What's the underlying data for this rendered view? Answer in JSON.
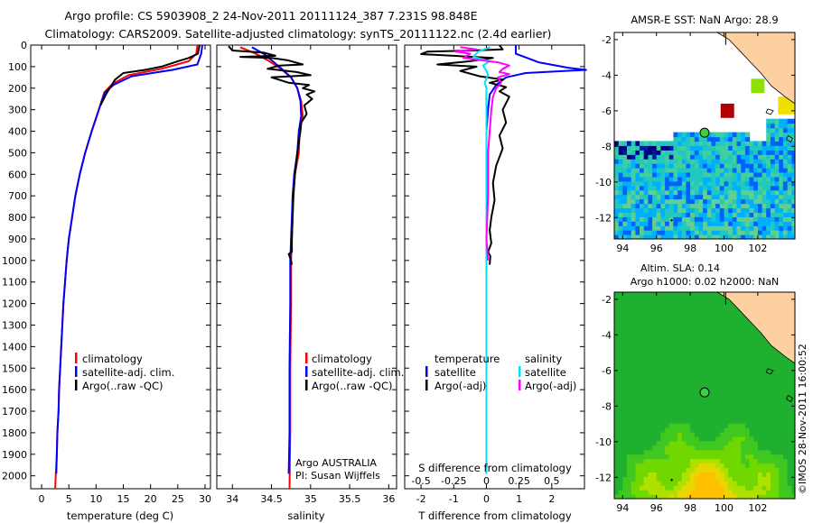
{
  "header": {
    "title_line1": "Argo profile: CS 5903908_2 24-Nov-2011 20111124_387 7.231S 98.848E",
    "title_line2": "Climatology: CARS2009. Satellite-adjusted climatology: synTS_20111122.nc (2.4d earlier)"
  },
  "colors": {
    "climatology": "#ff0000",
    "satellite": "#0000ff",
    "argo": "#000000",
    "sal_satellite": "#00e0ff",
    "sal_argo": "#ff00ff"
  },
  "legend": {
    "climatology": "climatology",
    "satellite_adj": "satellite-adj. clim.",
    "argo_raw": "Argo(..raw -QC)",
    "temperature_head": "temperature",
    "salinity_head": "salinity",
    "satellite": "satellite",
    "argo_adj": "Argo(-adj)"
  },
  "annotations": {
    "argo_country": "Argo AUSTRALIA",
    "pi": "PI: Susan Wijffels"
  },
  "timestamp": "©IMOS 28-Nov-2011 16:00:52",
  "chart_data": [
    {
      "type": "line",
      "name": "temperature-profile",
      "xlabel": "temperature (deg C)",
      "ylabel": "depth",
      "xlim": [
        -2,
        31
      ],
      "ylim": [
        2060,
        0
      ],
      "xticks": [
        0,
        5,
        10,
        15,
        20,
        25,
        30
      ],
      "yticks": [
        0,
        100,
        200,
        300,
        400,
        500,
        600,
        700,
        800,
        900,
        1000,
        1100,
        1200,
        1300,
        1400,
        1500,
        1600,
        1700,
        1800,
        1900,
        2000
      ],
      "series": [
        {
          "name": "climatology",
          "color_key": "climatology",
          "points": [
            [
              28.6,
              0
            ],
            [
              28.4,
              40
            ],
            [
              27,
              75
            ],
            [
              22,
              110
            ],
            [
              16,
              140
            ],
            [
              13,
              180
            ],
            [
              11.5,
              220
            ],
            [
              10.5,
              300
            ],
            [
              9.2,
              400
            ],
            [
              8,
              500
            ],
            [
              7,
              600
            ],
            [
              6.2,
              700
            ],
            [
              5.6,
              800
            ],
            [
              5,
              900
            ],
            [
              4.6,
              1000
            ],
            [
              4.3,
              1100
            ],
            [
              4,
              1200
            ],
            [
              3.8,
              1300
            ],
            [
              3.6,
              1400
            ],
            [
              3.4,
              1500
            ],
            [
              3.2,
              1600
            ],
            [
              3.1,
              1700
            ],
            [
              2.9,
              1800
            ],
            [
              2.8,
              1900
            ],
            [
              2.6,
              2000
            ],
            [
              2.5,
              2060
            ]
          ]
        },
        {
          "name": "satellite-adj. clim.",
          "color_key": "satellite",
          "points": [
            [
              29.5,
              0
            ],
            [
              29.3,
              40
            ],
            [
              28.6,
              90
            ],
            [
              24,
              115
            ],
            [
              16.5,
              145
            ],
            [
              13.2,
              185
            ],
            [
              11.6,
              220
            ],
            [
              10.5,
              300
            ],
            [
              9.2,
              400
            ],
            [
              8,
              500
            ],
            [
              7,
              600
            ],
            [
              6.2,
              700
            ],
            [
              5.6,
              800
            ],
            [
              5,
              900
            ],
            [
              4.6,
              1000
            ],
            [
              4.3,
              1100
            ],
            [
              4,
              1200
            ],
            [
              3.8,
              1300
            ],
            [
              3.6,
              1400
            ],
            [
              3.4,
              1500
            ],
            [
              3.2,
              1600
            ],
            [
              3.1,
              1700
            ],
            [
              2.9,
              1800
            ],
            [
              2.8,
              1900
            ],
            [
              2.7,
              1990
            ]
          ]
        },
        {
          "name": "Argo(..raw -QC)",
          "color_key": "argo",
          "points": [
            [
              29,
              0
            ],
            [
              28.7,
              40
            ],
            [
              27,
              60
            ],
            [
              25,
              75
            ],
            [
              22,
              100
            ],
            [
              19,
              115
            ],
            [
              15,
              130
            ],
            [
              13.5,
              160
            ],
            [
              12.5,
              200
            ],
            [
              11.8,
              230
            ],
            [
              10.8,
              280
            ]
          ]
        }
      ]
    },
    {
      "type": "line",
      "name": "salinity-profile",
      "xlabel": "salinity",
      "ylabel": "depth",
      "xlim": [
        33.8,
        36.1
      ],
      "ylim": [
        2060,
        0
      ],
      "xticks": [
        34,
        34.5,
        35,
        35.5,
        36
      ],
      "series": [
        {
          "name": "climatology",
          "color_key": "climatology",
          "points": [
            [
              34.1,
              10
            ],
            [
              34.3,
              40
            ],
            [
              34.45,
              70
            ],
            [
              34.62,
              110
            ],
            [
              34.75,
              150
            ],
            [
              34.83,
              200
            ],
            [
              34.88,
              260
            ],
            [
              34.9,
              330
            ],
            [
              34.86,
              400
            ],
            [
              34.85,
              500
            ],
            [
              34.8,
              600
            ],
            [
              34.78,
              700
            ],
            [
              34.77,
              800
            ],
            [
              34.76,
              900
            ],
            [
              34.75,
              1000
            ],
            [
              34.75,
              1200
            ],
            [
              34.74,
              1500
            ],
            [
              34.74,
              1800
            ],
            [
              34.73,
              2060
            ]
          ]
        },
        {
          "name": "satellite-adj. clim.",
          "color_key": "satellite",
          "points": [
            [
              34.25,
              10
            ],
            [
              34.4,
              40
            ],
            [
              34.5,
              70
            ],
            [
              34.63,
              110
            ],
            [
              34.75,
              150
            ],
            [
              34.83,
              200
            ],
            [
              34.87,
              260
            ],
            [
              34.88,
              330
            ],
            [
              34.85,
              400
            ],
            [
              34.83,
              500
            ],
            [
              34.79,
              600
            ],
            [
              34.77,
              700
            ],
            [
              34.76,
              800
            ],
            [
              34.75,
              900
            ],
            [
              34.74,
              1000
            ],
            [
              34.74,
              1200
            ],
            [
              34.73,
              1500
            ],
            [
              34.73,
              1800
            ],
            [
              34.72,
              1990
            ]
          ]
        },
        {
          "name": "Argo(..raw -QC)",
          "color_key": "argo",
          "points": [
            [
              33.95,
              5
            ],
            [
              34,
              25
            ],
            [
              34.4,
              35
            ],
            [
              34.55,
              50
            ],
            [
              34.1,
              55
            ],
            [
              34.5,
              60
            ],
            [
              34.7,
              70
            ],
            [
              34.9,
              90
            ],
            [
              34.6,
              95
            ],
            [
              34.45,
              110
            ],
            [
              34.82,
              125
            ],
            [
              35,
              140
            ],
            [
              34.5,
              150
            ],
            [
              34.72,
              175
            ],
            [
              34.98,
              185
            ],
            [
              34.9,
              200
            ],
            [
              35.05,
              215
            ],
            [
              34.95,
              230
            ],
            [
              35.02,
              250
            ],
            [
              34.92,
              280
            ],
            [
              34.95,
              320
            ],
            [
              34.88,
              360
            ],
            [
              34.87,
              400
            ],
            [
              34.85,
              450
            ],
            [
              34.83,
              500
            ],
            [
              34.8,
              600
            ],
            [
              34.78,
              700
            ],
            [
              34.77,
              800
            ],
            [
              34.76,
              900
            ],
            [
              34.76,
              960
            ],
            [
              34.72,
              970
            ],
            [
              34.75,
              1000
            ],
            [
              34.76,
              1020
            ]
          ]
        }
      ]
    },
    {
      "type": "line",
      "name": "difference-profile",
      "xlabel": "T difference from climatology",
      "x2label": "S difference from climatology",
      "ylabel": "depth",
      "xlim": [
        -2.5,
        3
      ],
      "ylim": [
        2060,
        0
      ],
      "xticks": [
        -2,
        -1,
        0,
        1,
        2
      ],
      "x2ticks": [
        -0.5,
        -0.25,
        0,
        0.25,
        0.5
      ],
      "series": [
        {
          "name": "T satellite",
          "color_key": "satellite",
          "points": [
            [
              0.9,
              0
            ],
            [
              0.9,
              40
            ],
            [
              1.6,
              80
            ],
            [
              2.5,
              105
            ],
            [
              3.05,
              115
            ],
            [
              1.2,
              130
            ],
            [
              0.6,
              150
            ],
            [
              0.3,
              185
            ],
            [
              0.1,
              230
            ],
            [
              0.05,
              300
            ],
            [
              0,
              400
            ],
            [
              0,
              600
            ],
            [
              0,
              1000
            ],
            [
              0,
              1500
            ],
            [
              0,
              1990
            ]
          ]
        },
        {
          "name": "T Argo(-adj)",
          "color_key": "argo",
          "points": [
            [
              0.4,
              0
            ],
            [
              0.5,
              20
            ],
            [
              -0.4,
              25
            ],
            [
              -1.8,
              30
            ],
            [
              -2,
              42
            ],
            [
              -1,
              50
            ],
            [
              0.2,
              60
            ],
            [
              -0.5,
              75
            ],
            [
              -1.5,
              90
            ],
            [
              -0.3,
              100
            ],
            [
              -0.8,
              120
            ],
            [
              -0.2,
              145
            ],
            [
              0.5,
              160
            ],
            [
              0.1,
              175
            ],
            [
              0.6,
              195
            ],
            [
              0.4,
              215
            ],
            [
              0.7,
              240
            ],
            [
              0.5,
              300
            ],
            [
              0.6,
              360
            ],
            [
              0.4,
              420
            ],
            [
              0.5,
              480
            ],
            [
              0.3,
              560
            ],
            [
              0.2,
              640
            ],
            [
              0.25,
              720
            ],
            [
              0.15,
              800
            ],
            [
              0.1,
              860
            ],
            [
              0.15,
              920
            ],
            [
              0.05,
              960
            ],
            [
              0.12,
              980
            ],
            [
              0.1,
              1020
            ]
          ]
        },
        {
          "name": "S satellite",
          "color_key": "sal_satellite",
          "points": [
            [
              0.1,
              10
            ],
            [
              -0.25,
              30
            ],
            [
              -0.4,
              55
            ],
            [
              0.1,
              75
            ],
            [
              -0.1,
              95
            ],
            [
              0,
              120
            ],
            [
              0.05,
              140
            ],
            [
              -0.05,
              175
            ],
            [
              0,
              200
            ],
            [
              0,
              300
            ],
            [
              0,
              500
            ],
            [
              0,
              800
            ],
            [
              0,
              1200
            ],
            [
              0,
              1600
            ],
            [
              0,
              1990
            ]
          ]
        },
        {
          "name": "S Argo(-adj)",
          "color_key": "sal_argo",
          "points": [
            [
              -0.8,
              10
            ],
            [
              -0.3,
              20
            ],
            [
              -0.95,
              30
            ],
            [
              -0.5,
              40
            ],
            [
              -0.7,
              60
            ],
            [
              0.35,
              80
            ],
            [
              0.7,
              95
            ],
            [
              0.5,
              110
            ],
            [
              0.4,
              125
            ],
            [
              0.7,
              135
            ],
            [
              0.35,
              150
            ],
            [
              0.45,
              175
            ],
            [
              0.3,
              200
            ],
            [
              0.2,
              240
            ],
            [
              0.15,
              300
            ],
            [
              0.1,
              400
            ],
            [
              0.05,
              500
            ],
            [
              0.05,
              700
            ],
            [
              0,
              900
            ],
            [
              0.05,
              1000
            ]
          ]
        }
      ]
    },
    {
      "type": "heatmap",
      "name": "sst-map",
      "title": "AMSR-E SST: NaN Argo: 28.9",
      "xlim": [
        93.5,
        104.2
      ],
      "ylim": [
        -13.2,
        -1.6
      ],
      "xticks": [
        94,
        96,
        98,
        100,
        102
      ],
      "xtick_labels": [
        "94",
        "96",
        "98",
        "100",
        "102"
      ],
      "yticks": [
        -2,
        -4,
        -6,
        -8,
        -10,
        -12
      ],
      "profile_location": [
        98.848,
        -7.231
      ]
    },
    {
      "type": "heatmap",
      "name": "sla-map",
      "title": "Altim. SLA: 0.14",
      "subtitle": "Argo h1000: 0.02 h2000: NaN",
      "xlim": [
        93.5,
        104.2
      ],
      "ylim": [
        -13.2,
        -1.6
      ],
      "xticks": [
        94,
        96,
        98,
        100,
        102
      ],
      "xtick_labels": [
        "94",
        "96",
        "98",
        "100",
        "102"
      ],
      "yticks": [
        -2,
        -4,
        -6,
        -8,
        -10,
        -12
      ],
      "profile_location": [
        98.848,
        -7.231
      ]
    }
  ]
}
